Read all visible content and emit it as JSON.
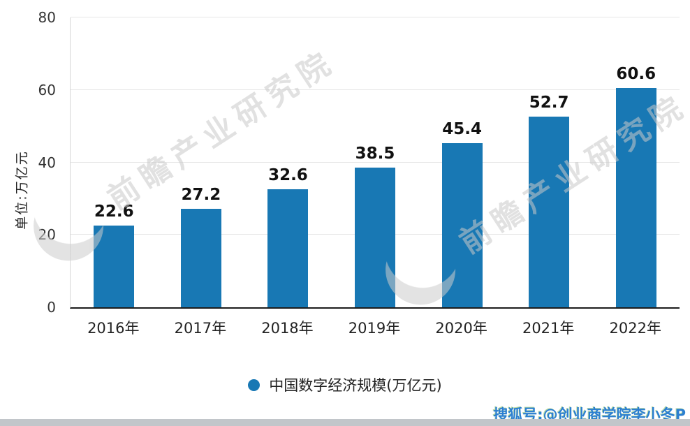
{
  "chart_data": {
    "type": "bar",
    "title": "",
    "categories": [
      "2016年",
      "2017年",
      "2018年",
      "2019年",
      "2020年",
      "2021年",
      "2022年"
    ],
    "values": [
      22.6,
      27.2,
      32.6,
      38.5,
      45.4,
      52.7,
      60.6
    ],
    "series": [
      {
        "name": "中国数字经济规模(万亿元)",
        "values": [
          22.6,
          27.2,
          32.6,
          38.5,
          45.4,
          52.7,
          60.6
        ]
      }
    ],
    "xlabel": "",
    "ylabel": "单位:万亿元",
    "ylim": [
      0,
      80
    ],
    "yticks": [
      0,
      20,
      40,
      60,
      80
    ],
    "grid": true,
    "legend_position": "bottom",
    "bar_color": "#1878b4"
  },
  "legend": {
    "label": "中国数字经济规模(万亿元)"
  },
  "watermark": {
    "text": "前瞻产业研究院"
  },
  "footer": {
    "credit": "搜狐号:@创业商学院李小冬P"
  }
}
